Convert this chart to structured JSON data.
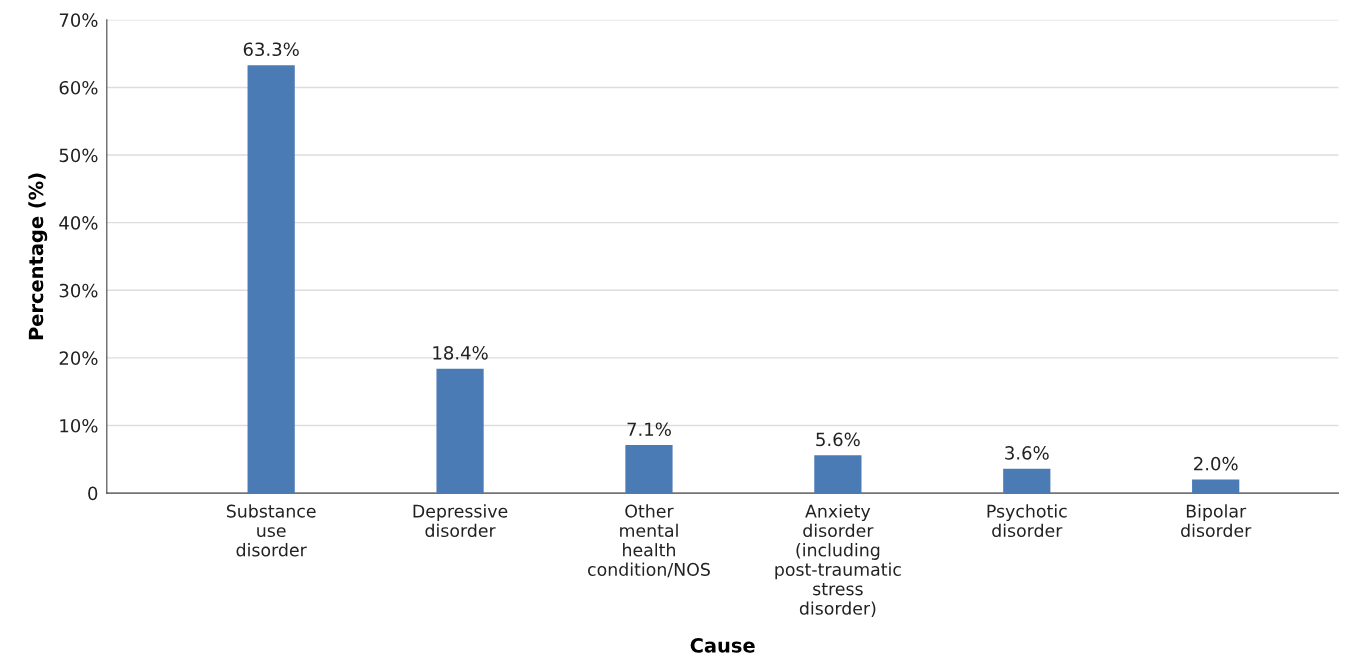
{
  "chart_data": {
    "type": "bar",
    "xlabel": "Cause",
    "ylabel": "Percentage (%)",
    "categories": [
      "Substance\nuse\ndisorder",
      "Depressive\ndisorder",
      "Other\nmental\nhealth\ncondition/NOS",
      "Anxiety\ndisorder\n(including\npost-traumatic\nstress\ndisorder)",
      "Psychotic\ndisorder",
      "Bipolar\ndisorder"
    ],
    "values": [
      63.3,
      18.4,
      7.1,
      5.6,
      3.6,
      2.0
    ],
    "value_labels": [
      "63.3%",
      "18.4%",
      "7.1%",
      "5.6%",
      "3.6%",
      "2.0%"
    ],
    "color": "#4a7bb5",
    "ylim": [
      0,
      70
    ],
    "yticks": [
      0,
      {
        "value": 10,
        "label": "10%"
      },
      {
        "value": 20,
        "label": "20%"
      },
      {
        "value": 30,
        "label": "30%"
      },
      {
        "value": 40,
        "label": "40%"
      },
      {
        "value": 50,
        "label": "50%"
      },
      {
        "value": 60,
        "label": "60%"
      },
      {
        "value": 70,
        "label": "70%"
      }
    ],
    "grid": "y"
  }
}
